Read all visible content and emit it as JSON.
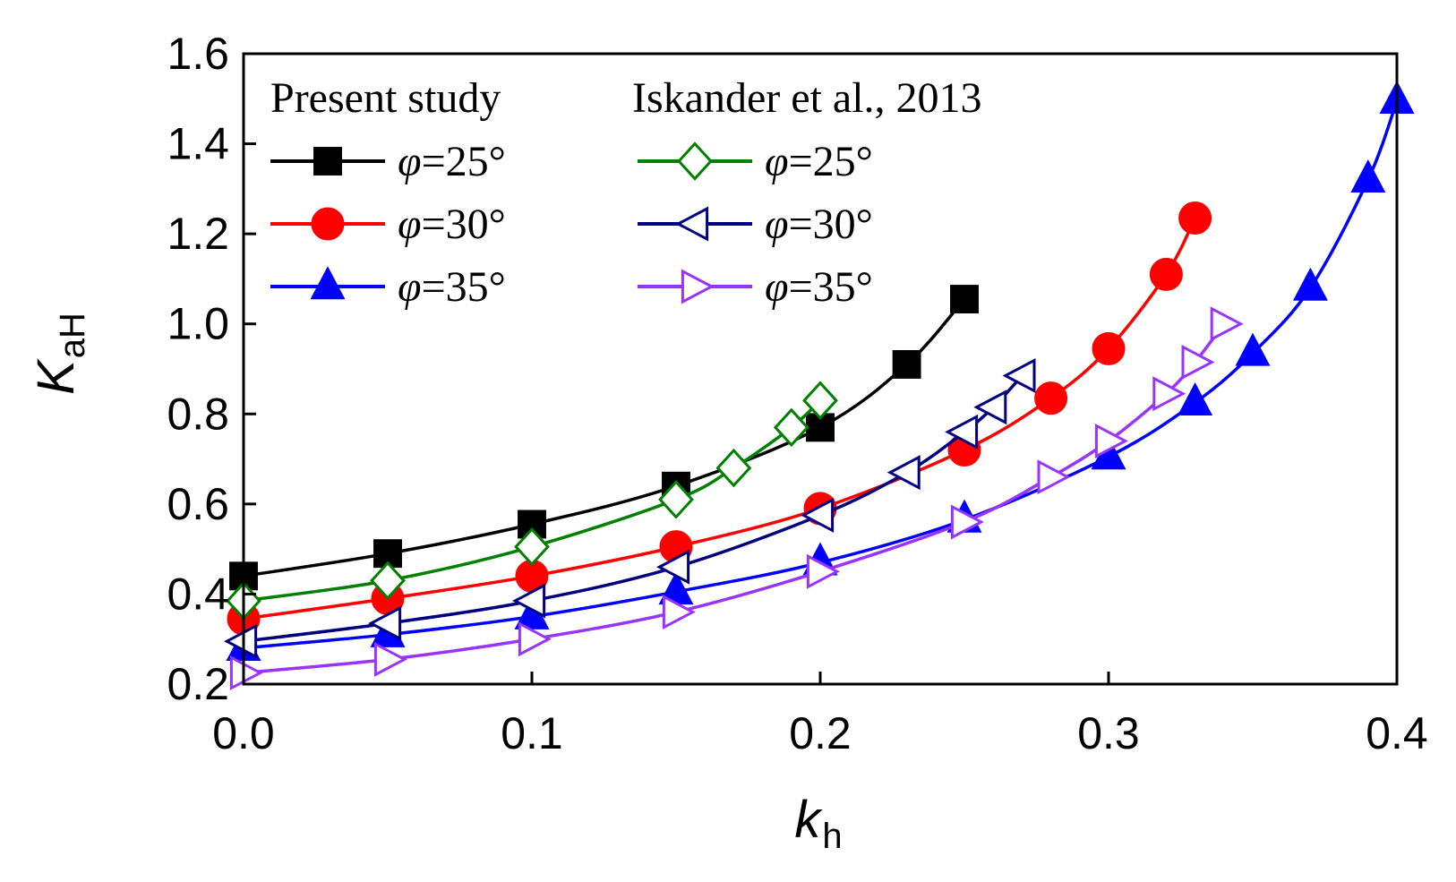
{
  "chart_data": {
    "type": "line",
    "title": "",
    "xlabel": {
      "main": "k",
      "sub": "h"
    },
    "ylabel": {
      "main": "K",
      "sub": "aH"
    },
    "xlim": [
      0.0,
      0.4
    ],
    "ylim": [
      0.2,
      1.6
    ],
    "xticks": [
      "0.0",
      "0.1",
      "0.2",
      "0.3",
      "0.4"
    ],
    "yticks": [
      "0.2",
      "0.4",
      "0.6",
      "0.8",
      "1.0",
      "1.2",
      "1.4",
      "1.6"
    ],
    "xtick_values": [
      0.0,
      0.1,
      0.2,
      0.3,
      0.4
    ],
    "ytick_values": [
      0.2,
      0.4,
      0.6,
      0.8,
      1.0,
      1.2,
      1.4,
      1.6
    ],
    "legend": {
      "placement": "top-left",
      "group_headers": [
        "Present study",
        "Iskander et al., 2013"
      ]
    },
    "series": [
      {
        "name": "φ=25°",
        "phi_symbol": "φ",
        "phi_value": "=25°",
        "group": 0,
        "color": "#000000",
        "marker": "square",
        "filled": true,
        "x": [
          0.0,
          0.05,
          0.1,
          0.15,
          0.2,
          0.23,
          0.25
        ],
        "y": [
          0.44,
          0.49,
          0.555,
          0.64,
          0.77,
          0.91,
          1.055
        ]
      },
      {
        "name": "φ=30°",
        "phi_symbol": "φ",
        "phi_value": "=30°",
        "group": 0,
        "color": "#ff0000",
        "marker": "circle",
        "filled": true,
        "x": [
          0.0,
          0.05,
          0.1,
          0.15,
          0.2,
          0.25,
          0.28,
          0.3,
          0.32,
          0.33
        ],
        "y": [
          0.345,
          0.39,
          0.44,
          0.505,
          0.59,
          0.72,
          0.835,
          0.945,
          1.11,
          1.235
        ]
      },
      {
        "name": "φ=35°",
        "phi_symbol": "φ",
        "phi_value": "=35°",
        "group": 0,
        "color": "#0000ff",
        "marker": "triangle-up",
        "filled": true,
        "x": [
          0.0,
          0.05,
          0.1,
          0.15,
          0.2,
          0.25,
          0.3,
          0.33,
          0.35,
          0.37,
          0.39,
          0.4
        ],
        "y": [
          0.28,
          0.31,
          0.35,
          0.405,
          0.47,
          0.565,
          0.705,
          0.825,
          0.935,
          1.08,
          1.32,
          1.495
        ]
      },
      {
        "name": "φ=25°",
        "phi_symbol": "φ",
        "phi_value": "=25°",
        "group": 1,
        "color": "#008000",
        "marker": "diamond",
        "filled": false,
        "x": [
          0.0,
          0.05,
          0.1,
          0.15,
          0.17,
          0.19,
          0.2
        ],
        "y": [
          0.385,
          0.43,
          0.505,
          0.61,
          0.68,
          0.77,
          0.83
        ]
      },
      {
        "name": "φ=30°",
        "phi_symbol": "φ",
        "phi_value": "=30°",
        "group": 1,
        "color": "#000080",
        "marker": "triangle-left",
        "filled": false,
        "x": [
          0.0,
          0.05,
          0.1,
          0.15,
          0.2,
          0.23,
          0.25,
          0.26,
          0.27
        ],
        "y": [
          0.295,
          0.335,
          0.385,
          0.46,
          0.575,
          0.67,
          0.76,
          0.815,
          0.885
        ]
      },
      {
        "name": "φ=35°",
        "phi_symbol": "φ",
        "phi_value": "=35°",
        "group": 1,
        "color": "#9933ff",
        "marker": "triangle-right",
        "filled": false,
        "x": [
          0.0,
          0.05,
          0.1,
          0.15,
          0.2,
          0.25,
          0.28,
          0.3,
          0.32,
          0.33,
          0.34
        ],
        "y": [
          0.225,
          0.255,
          0.3,
          0.36,
          0.45,
          0.56,
          0.66,
          0.74,
          0.845,
          0.915,
          1.0
        ]
      }
    ]
  }
}
